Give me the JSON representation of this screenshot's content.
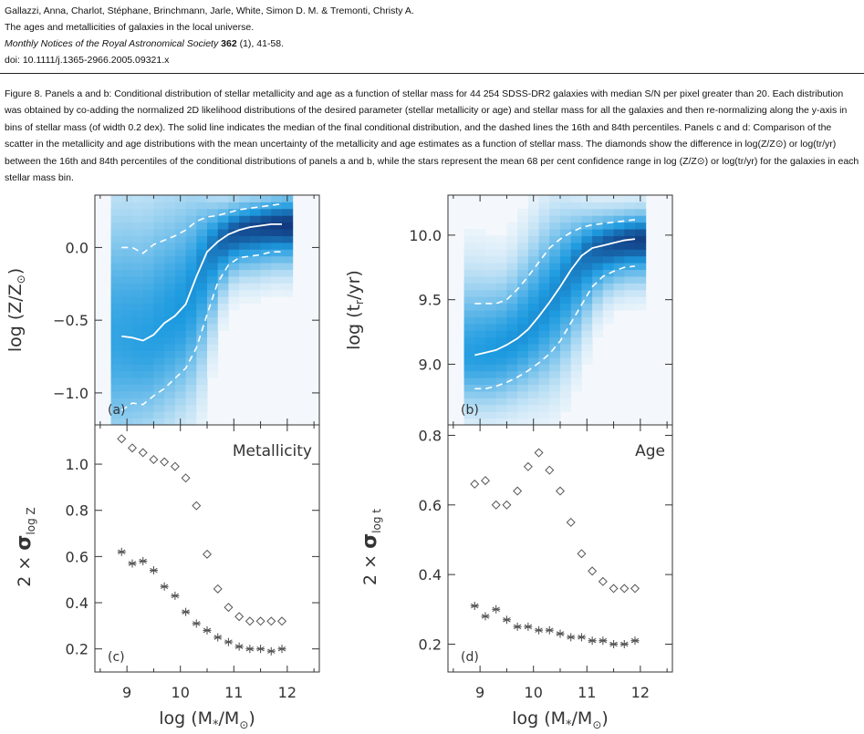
{
  "citation": {
    "authors": "Gallazzi, Anna, Charlot, Stéphane, Brinchmann, Jarle, White, Simon D. M. & Tremonti, Christy A.",
    "title": "The ages and metallicities of galaxies in the local universe.",
    "journal": "Monthly Notices of the Royal Astronomical Society",
    "volume": "362",
    "issue_pages": "(1), 41-58.",
    "doi": "doi: 10.1111/j.1365-2966.2005.09321.x"
  },
  "caption": "Figure 8. Panels a and b: Conditional distribution of stellar metallicity and age as a function of stellar mass for 44 254 SDSS-DR2 galaxies with median S/N per pixel greater than 20. Each distribution was obtained by co-adding the normalized 2D likelihood distributions of the desired parameter (stellar metallicity or age) and stellar mass for all the galaxies and then re-normalizing along the y-axis in bins of stellar mass (of width 0.2 dex). The solid line indicates the median of the final conditional distribution, and the dashed lines the 16th and 84th percentiles. Panels c and d: Comparison of the scatter in the metallicity and age distributions with the mean uncertainty of the metallicity and age estimates as a function of stellar mass. The diamonds show the difference in log(Z/Z⊙) or log(tr/yr) between the 16th and 84th percentiles of the conditional distributions of panels a and b, while the stars represent the mean 68 per cent confidence range in log (Z/Z⊙) or log(tr/yr) for the galaxies in each stellar mass bin.",
  "colors": {
    "heat_low": "#f4f8fc",
    "heat_mid": "#1e9be0",
    "heat_high": "#0c0c52",
    "line": "#ffffff",
    "marker": "#555555",
    "axis": "#333333"
  },
  "chart_data": [
    {
      "panel": "a",
      "type": "heatmap",
      "panel_label": "(a)",
      "ylabel": "log (Z/Z⊙)",
      "xlim": [
        8.4,
        12.6
      ],
      "ylim": [
        -1.22,
        0.36
      ],
      "ytick_labels": [
        "0.0",
        "−0.5",
        "−1.0"
      ],
      "ytick_values": [
        0.0,
        -0.5,
        -1.0
      ],
      "median": {
        "x": [
          8.9,
          9.1,
          9.3,
          9.5,
          9.7,
          9.9,
          10.1,
          10.3,
          10.5,
          10.7,
          10.9,
          11.1,
          11.3,
          11.5,
          11.7,
          11.9
        ],
        "y": [
          -0.61,
          -0.62,
          -0.64,
          -0.6,
          -0.52,
          -0.47,
          -0.39,
          -0.2,
          -0.03,
          0.04,
          0.09,
          0.12,
          0.14,
          0.15,
          0.16,
          0.16
        ]
      },
      "p16": {
        "x": [
          8.9,
          9.1,
          9.3,
          9.5,
          9.7,
          9.9,
          10.1,
          10.3,
          10.5,
          10.7,
          10.9,
          11.1,
          11.3,
          11.5,
          11.7,
          11.9
        ],
        "y": [
          -1.12,
          -1.07,
          -1.08,
          -1.02,
          -0.97,
          -0.9,
          -0.83,
          -0.69,
          -0.46,
          -0.24,
          -0.12,
          -0.07,
          -0.06,
          -0.05,
          -0.03,
          -0.03
        ]
      },
      "p84": {
        "x": [
          8.9,
          9.1,
          9.3,
          9.5,
          9.7,
          9.9,
          10.1,
          10.3,
          10.5,
          10.7,
          10.9,
          11.1,
          11.3,
          11.5,
          11.7,
          11.9
        ],
        "y": [
          0.0,
          0.0,
          -0.04,
          0.02,
          0.05,
          0.08,
          0.12,
          0.18,
          0.21,
          0.22,
          0.24,
          0.26,
          0.27,
          0.28,
          0.29,
          0.3
        ]
      }
    },
    {
      "panel": "b",
      "type": "heatmap",
      "panel_label": "(b)",
      "ylabel": "log (tr/yr)",
      "xlim": [
        8.4,
        12.6
      ],
      "ylim": [
        8.53,
        10.31
      ],
      "ytick_labels": [
        "10.0",
        "9.5",
        "9.0"
      ],
      "ytick_values": [
        10.0,
        9.5,
        9.0
      ],
      "median": {
        "x": [
          8.9,
          9.1,
          9.3,
          9.5,
          9.7,
          9.9,
          10.1,
          10.3,
          10.5,
          10.7,
          10.9,
          11.1,
          11.3,
          11.5,
          11.7,
          11.9
        ],
        "y": [
          9.07,
          9.09,
          9.11,
          9.15,
          9.2,
          9.27,
          9.37,
          9.48,
          9.6,
          9.73,
          9.84,
          9.9,
          9.92,
          9.94,
          9.96,
          9.97
        ]
      },
      "p16": {
        "x": [
          8.9,
          9.1,
          9.3,
          9.5,
          9.7,
          9.9,
          10.1,
          10.3,
          10.5,
          10.7,
          10.9,
          11.1,
          11.3,
          11.5,
          11.7,
          11.9
        ],
        "y": [
          8.81,
          8.81,
          8.83,
          8.86,
          8.9,
          8.95,
          9.01,
          9.08,
          9.18,
          9.32,
          9.46,
          9.6,
          9.68,
          9.72,
          9.75,
          9.76
        ]
      },
      "p84": {
        "x": [
          8.9,
          9.1,
          9.3,
          9.5,
          9.7,
          9.9,
          10.1,
          10.3,
          10.5,
          10.7,
          10.9,
          11.1,
          11.3,
          11.5,
          11.7,
          11.9
        ],
        "y": [
          9.47,
          9.47,
          9.47,
          9.5,
          9.58,
          9.68,
          9.79,
          9.9,
          9.97,
          10.02,
          10.06,
          10.08,
          10.09,
          10.1,
          10.11,
          10.12
        ]
      }
    },
    {
      "panel": "c",
      "type": "scatter",
      "panel_label": "(c)",
      "title": "Metallicity",
      "ylabel": "2 × σlog Z",
      "xlim": [
        8.4,
        12.6
      ],
      "ylim": [
        0.1,
        1.17
      ],
      "ytick_labels": [
        "1.0",
        "0.8",
        "0.6",
        "0.4",
        "0.2"
      ],
      "ytick_values": [
        1.0,
        0.8,
        0.6,
        0.4,
        0.2
      ],
      "xtick_labels": [
        "9",
        "10",
        "11",
        "12"
      ],
      "xtick_values": [
        9,
        10,
        11,
        12
      ],
      "xlabel": "log (M*/M⊙)",
      "series": [
        {
          "name": "diamonds",
          "x": [
            8.9,
            9.1,
            9.3,
            9.5,
            9.7,
            9.9,
            10.1,
            10.3,
            10.5,
            10.7,
            10.9,
            11.1,
            11.3,
            11.5,
            11.7,
            11.9
          ],
          "y": [
            1.11,
            1.07,
            1.05,
            1.02,
            1.01,
            0.99,
            0.94,
            0.82,
            0.61,
            0.46,
            0.38,
            0.34,
            0.32,
            0.32,
            0.32,
            0.32
          ]
        },
        {
          "name": "stars",
          "x": [
            8.9,
            9.1,
            9.3,
            9.5,
            9.7,
            9.9,
            10.1,
            10.3,
            10.5,
            10.7,
            10.9,
            11.1,
            11.3,
            11.5,
            11.7,
            11.9
          ],
          "y": [
            0.62,
            0.57,
            0.58,
            0.54,
            0.47,
            0.43,
            0.36,
            0.31,
            0.28,
            0.25,
            0.23,
            0.21,
            0.2,
            0.2,
            0.19,
            0.2
          ]
        }
      ]
    },
    {
      "panel": "d",
      "type": "scatter",
      "panel_label": "(d)",
      "title": "Age",
      "ylabel": "2 × σlog t",
      "xlim": [
        8.4,
        12.6
      ],
      "ylim": [
        0.12,
        0.83
      ],
      "ytick_labels": [
        "0.8",
        "0.6",
        "0.4",
        "0.2"
      ],
      "ytick_values": [
        0.8,
        0.6,
        0.4,
        0.2
      ],
      "xtick_labels": [
        "9",
        "10",
        "11",
        "12"
      ],
      "xtick_values": [
        9,
        10,
        11,
        12
      ],
      "xlabel": "log (M*/M⊙)",
      "series": [
        {
          "name": "diamonds",
          "x": [
            8.9,
            9.1,
            9.3,
            9.5,
            9.7,
            9.9,
            10.1,
            10.3,
            10.5,
            10.7,
            10.9,
            11.1,
            11.3,
            11.5,
            11.7,
            11.9
          ],
          "y": [
            0.66,
            0.67,
            0.6,
            0.6,
            0.64,
            0.71,
            0.75,
            0.7,
            0.64,
            0.55,
            0.46,
            0.41,
            0.38,
            0.36,
            0.36,
            0.36
          ]
        },
        {
          "name": "stars",
          "x": [
            8.9,
            9.1,
            9.3,
            9.5,
            9.7,
            9.9,
            10.1,
            10.3,
            10.5,
            10.7,
            10.9,
            11.1,
            11.3,
            11.5,
            11.7,
            11.9
          ],
          "y": [
            0.31,
            0.28,
            0.3,
            0.27,
            0.25,
            0.25,
            0.24,
            0.24,
            0.23,
            0.22,
            0.22,
            0.21,
            0.21,
            0.2,
            0.2,
            0.21
          ]
        }
      ]
    }
  ]
}
